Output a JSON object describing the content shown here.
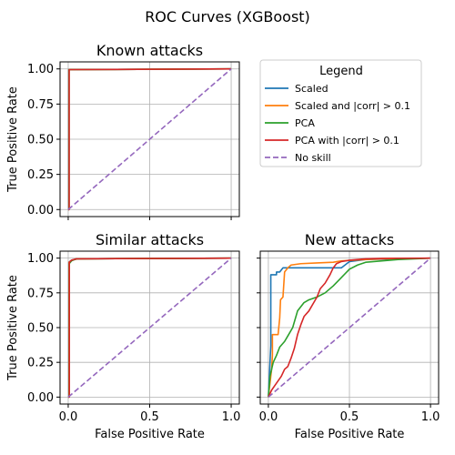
{
  "figure_title": "ROC Curves (XGBoost)",
  "legend": {
    "title": "Legend",
    "entries": [
      {
        "label": "Scaled",
        "color": "#1f77b4",
        "dashed": false
      },
      {
        "label": "Scaled and |corr| > 0.1",
        "color": "#ff7f0e",
        "dashed": false
      },
      {
        "label": "PCA",
        "color": "#2ca02c",
        "dashed": false
      },
      {
        "label": "PCA with |corr| > 0.1",
        "color": "#d62728",
        "dashed": false
      },
      {
        "label": "No skill",
        "color": "#9467bd",
        "dashed": true
      }
    ]
  },
  "chart_data": [
    {
      "type": "line",
      "title": "Known attacks",
      "xlabel": "",
      "ylabel": "True Positive Rate",
      "xlim": [
        -0.05,
        1.05
      ],
      "ylim": [
        -0.05,
        1.05
      ],
      "xticks": [
        0.0,
        0.5,
        1.0
      ],
      "xtick_labels": [
        "",
        "",
        ""
      ],
      "yticks": [
        0.0,
        0.25,
        0.5,
        0.75,
        1.0
      ],
      "ytick_labels": [
        "0.00",
        "0.25",
        "0.50",
        "0.75",
        "1.00"
      ],
      "grid": true,
      "series": [
        {
          "name": "Scaled",
          "color": "#1f77b4",
          "x": [
            0,
            0.003,
            0.003,
            1
          ],
          "y": [
            0,
            0,
            0.995,
            1
          ]
        },
        {
          "name": "Scaled and |corr| > 0.1",
          "color": "#ff7f0e",
          "x": [
            0,
            0.004,
            0.004,
            1
          ],
          "y": [
            0,
            0,
            0.995,
            1
          ]
        },
        {
          "name": "PCA",
          "color": "#2ca02c",
          "x": [
            0,
            0.005,
            0.005,
            1
          ],
          "y": [
            0,
            0,
            0.995,
            1
          ]
        },
        {
          "name": "PCA with |corr| > 0.1",
          "color": "#d62728",
          "x": [
            0,
            0.006,
            0.006,
            1
          ],
          "y": [
            0,
            0,
            0.995,
            1
          ]
        },
        {
          "name": "No skill",
          "color": "#9467bd",
          "dashed": true,
          "x": [
            0,
            1
          ],
          "y": [
            0,
            1
          ]
        }
      ]
    },
    {
      "type": "line",
      "title": "Similar attacks",
      "xlabel": "False Positive Rate",
      "ylabel": "True Positive Rate",
      "xlim": [
        -0.05,
        1.05
      ],
      "ylim": [
        -0.05,
        1.05
      ],
      "xticks": [
        0.0,
        0.5,
        1.0
      ],
      "xtick_labels": [
        "0.0",
        "0.5",
        "1.0"
      ],
      "yticks": [
        0.0,
        0.25,
        0.5,
        0.75,
        1.0
      ],
      "ytick_labels": [
        "0.00",
        "0.25",
        "0.50",
        "0.75",
        "1.00"
      ],
      "grid": true,
      "series": [
        {
          "name": "Scaled",
          "color": "#1f77b4",
          "x": [
            0,
            0.004,
            0.004,
            0.02,
            0.06,
            1
          ],
          "y": [
            0,
            0,
            0.97,
            0.985,
            0.995,
            1
          ]
        },
        {
          "name": "Scaled and |corr| > 0.1",
          "color": "#ff7f0e",
          "x": [
            0,
            0.005,
            0.005,
            0.02,
            0.06,
            1
          ],
          "y": [
            0,
            0,
            0.97,
            0.985,
            0.995,
            1
          ]
        },
        {
          "name": "PCA",
          "color": "#2ca02c",
          "x": [
            0,
            0.006,
            0.006,
            0.02,
            0.05,
            1
          ],
          "y": [
            0,
            0,
            0.96,
            0.98,
            0.995,
            1
          ]
        },
        {
          "name": "PCA with |corr| > 0.1",
          "color": "#d62728",
          "x": [
            0,
            0.007,
            0.007,
            0.02,
            0.05,
            1
          ],
          "y": [
            0,
            0,
            0.97,
            0.985,
            0.995,
            1
          ]
        },
        {
          "name": "No skill",
          "color": "#9467bd",
          "dashed": true,
          "x": [
            0,
            1
          ],
          "y": [
            0,
            1
          ]
        }
      ]
    },
    {
      "type": "line",
      "title": "New attacks",
      "xlabel": "False Positive Rate",
      "ylabel": "",
      "xlim": [
        -0.05,
        1.05
      ],
      "ylim": [
        -0.05,
        1.05
      ],
      "xticks": [
        0.0,
        0.5,
        1.0
      ],
      "xtick_labels": [
        "0.0",
        "0.5",
        "1.0"
      ],
      "yticks": [
        0.0,
        0.25,
        0.5,
        0.75,
        1.0
      ],
      "ytick_labels": [
        "",
        "",
        "",
        "",
        ""
      ],
      "grid": true,
      "series": [
        {
          "name": "Scaled",
          "color": "#1f77b4",
          "x": [
            0,
            0.015,
            0.015,
            0.05,
            0.05,
            0.07,
            0.09,
            0.45,
            0.5,
            0.6,
            0.8,
            1
          ],
          "y": [
            0,
            0.37,
            0.88,
            0.88,
            0.9,
            0.9,
            0.93,
            0.93,
            0.975,
            0.99,
            0.995,
            1
          ]
        },
        {
          "name": "Scaled and |corr| > 0.1",
          "color": "#ff7f0e",
          "x": [
            0,
            0.02,
            0.025,
            0.025,
            0.06,
            0.07,
            0.075,
            0.09,
            0.1,
            0.12,
            0.14,
            0.2,
            0.3,
            0.4,
            0.45,
            0.6,
            0.7,
            1
          ],
          "y": [
            0,
            0.2,
            0.3,
            0.45,
            0.45,
            0.57,
            0.7,
            0.72,
            0.9,
            0.93,
            0.95,
            0.96,
            0.965,
            0.97,
            0.98,
            0.99,
            0.995,
            1
          ]
        },
        {
          "name": "PCA",
          "color": "#2ca02c",
          "x": [
            0,
            0.01,
            0.03,
            0.05,
            0.07,
            0.1,
            0.12,
            0.15,
            0.18,
            0.22,
            0.25,
            0.3,
            0.35,
            0.4,
            0.45,
            0.5,
            0.55,
            0.6,
            0.7,
            0.8,
            0.9,
            1
          ],
          "y": [
            0,
            0.15,
            0.25,
            0.3,
            0.36,
            0.4,
            0.44,
            0.5,
            0.62,
            0.68,
            0.7,
            0.72,
            0.75,
            0.8,
            0.86,
            0.92,
            0.95,
            0.97,
            0.98,
            0.99,
            0.995,
            1
          ]
        },
        {
          "name": "PCA with |corr| > 0.1",
          "color": "#d62728",
          "x": [
            0,
            0.02,
            0.05,
            0.08,
            0.1,
            0.12,
            0.14,
            0.16,
            0.18,
            0.2,
            0.22,
            0.25,
            0.28,
            0.3,
            0.32,
            0.35,
            0.38,
            0.4,
            0.42,
            0.45,
            0.5,
            0.55,
            0.6,
            0.7,
            0.8,
            1
          ],
          "y": [
            0,
            0.05,
            0.1,
            0.15,
            0.2,
            0.22,
            0.28,
            0.35,
            0.45,
            0.52,
            0.58,
            0.62,
            0.68,
            0.72,
            0.78,
            0.82,
            0.88,
            0.93,
            0.96,
            0.975,
            0.985,
            0.99,
            0.995,
            0.998,
            0.999,
            1
          ]
        },
        {
          "name": "No skill",
          "color": "#9467bd",
          "dashed": true,
          "x": [
            0,
            1
          ],
          "y": [
            0,
            1
          ]
        }
      ]
    }
  ]
}
